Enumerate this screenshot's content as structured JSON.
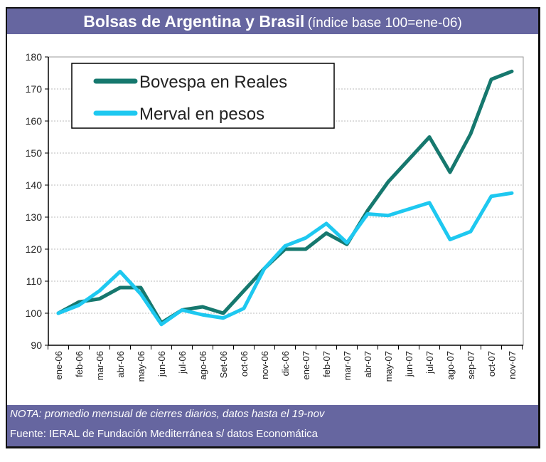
{
  "title": {
    "main": "Bolsas de Argentina y Brasil",
    "sub": "(índice base 100=ene-06)"
  },
  "footer": {
    "note": "NOTA: promedio mensual de cierres diarios, datos hasta el 19-nov",
    "source": "Fuente: IERAL de Fundación Mediterránea s/ datos Economática"
  },
  "colors": {
    "header_bg": "#6666a0",
    "bovespa": "#16786e",
    "merval": "#1ec8f0"
  },
  "chart_data": {
    "type": "line",
    "ylim": [
      90,
      180
    ],
    "yticks": [
      90,
      100,
      110,
      120,
      130,
      140,
      150,
      160,
      170,
      180
    ],
    "grid": "horizontal dotted",
    "legend_placement": "top-left",
    "categories": [
      "ene-06",
      "feb-06",
      "mar-06",
      "abr-06",
      "may-06",
      "jun-06",
      "jul-06",
      "ago-06",
      "Set-06",
      "oct-06",
      "nov-06",
      "dic-06",
      "ene-07",
      "feb-07",
      "mar-07",
      "abr-07",
      "may-07",
      "jun-07",
      "jul-07",
      "ago-07",
      "sep-07",
      "oct-07",
      "nov-07"
    ],
    "series": [
      {
        "name": "Bovespa en Reales",
        "color": "#16786e",
        "values": [
          100,
          103.5,
          104.5,
          108,
          108,
          97,
          101,
          102,
          100,
          107,
          114,
          120,
          120,
          125,
          121.5,
          132,
          141,
          148,
          155,
          144,
          156,
          173,
          175.5
        ]
      },
      {
        "name": "Merval en pesos",
        "color": "#1ec8f0",
        "values": [
          100,
          102.5,
          107,
          113,
          106,
          96.5,
          101,
          99.5,
          98.5,
          101.5,
          114,
          121,
          123.5,
          128,
          122,
          131,
          130.5,
          132.5,
          134.5,
          123,
          125.5,
          136.5,
          137.5
        ]
      }
    ]
  }
}
